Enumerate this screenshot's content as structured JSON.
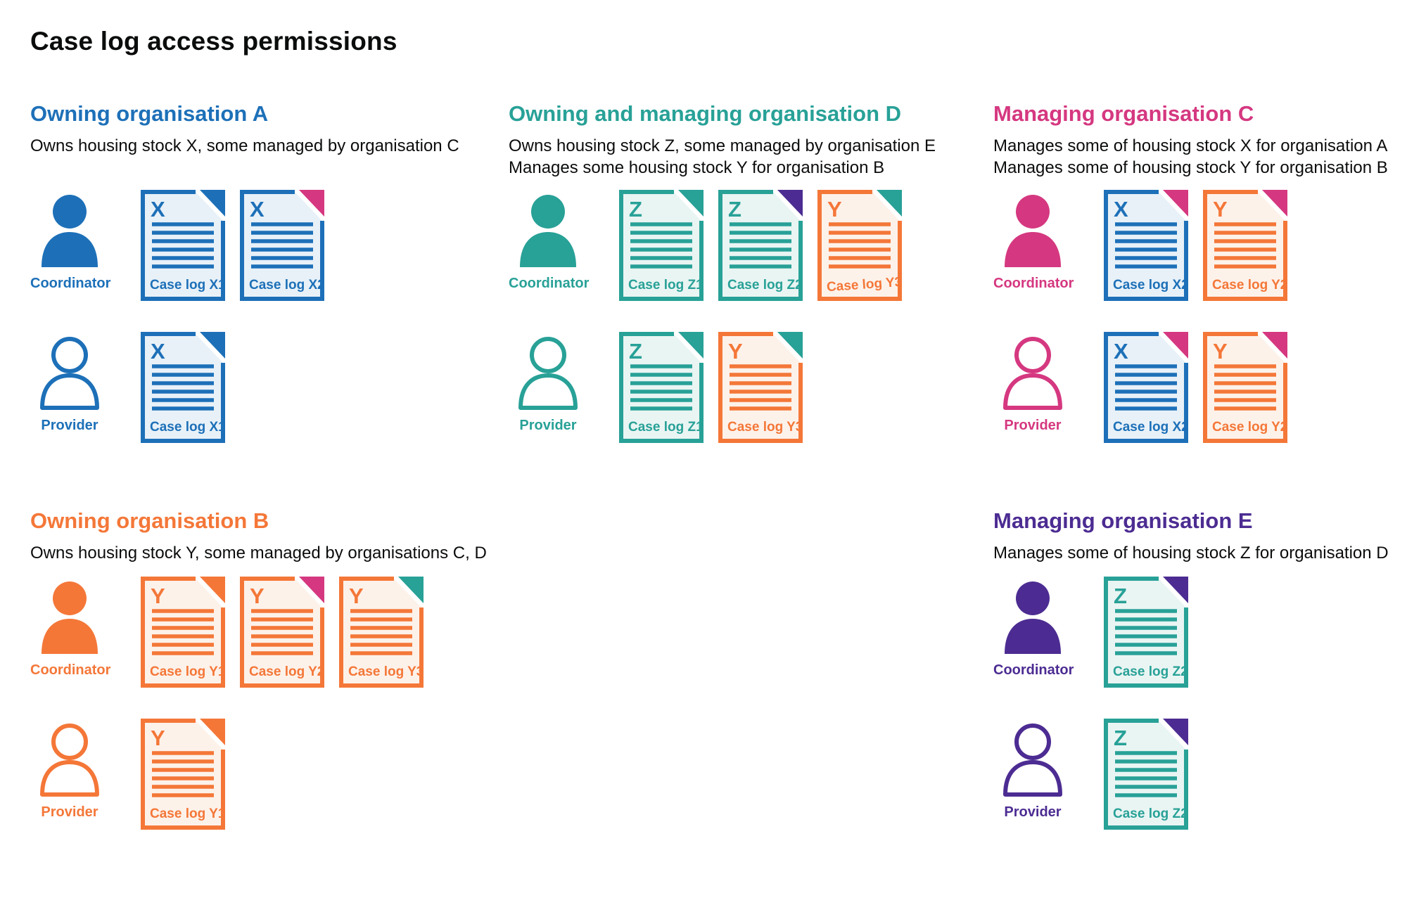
{
  "page_title": "Case log access permissions",
  "colors": {
    "blue": "#1d70b8",
    "teal": "#28a197",
    "orange": "#f47738",
    "pink": "#d53880",
    "purple": "#4c2c92",
    "text": "#0b0c0c",
    "blue_tint": "#e8f1f8",
    "teal_tint": "#e9f5f3",
    "orange_tint": "#fdf2ea"
  },
  "columns": [
    {
      "sections": [
        {
          "id": "owning-organisation-a",
          "title": "Owning organisation A",
          "color": "blue",
          "description": [
            "Owns housing stock X, some managed by organisation C"
          ],
          "rows": [
            {
              "role": "Coordinator",
              "icon": "person-filled-icon",
              "docs": [
                {
                  "letter": "X",
                  "label": "Case log X1",
                  "stock": "blue",
                  "fold": "blue"
                },
                {
                  "letter": "X",
                  "label": "Case log X2",
                  "stock": "blue",
                  "fold": "pink"
                }
              ]
            },
            {
              "role": "Provider",
              "icon": "person-outline-icon",
              "docs": [
                {
                  "letter": "X",
                  "label": "Case log X1",
                  "stock": "blue",
                  "fold": "blue"
                }
              ]
            }
          ]
        },
        {
          "id": "owning-organisation-b",
          "title": "Owning organisation B",
          "color": "orange",
          "description": [
            "Owns housing stock Y, some managed by organisations C, D"
          ],
          "rows": [
            {
              "role": "Coordinator",
              "icon": "person-filled-icon",
              "docs": [
                {
                  "letter": "Y",
                  "label": "Case log Y1",
                  "stock": "orange",
                  "fold": "orange"
                },
                {
                  "letter": "Y",
                  "label": "Case log Y2",
                  "stock": "orange",
                  "fold": "pink"
                },
                {
                  "letter": "Y",
                  "label": "Case log Y3",
                  "stock": "orange",
                  "fold": "teal"
                }
              ]
            },
            {
              "role": "Provider",
              "icon": "person-outline-icon",
              "docs": [
                {
                  "letter": "Y",
                  "label": "Case log Y1",
                  "stock": "orange",
                  "fold": "orange"
                }
              ]
            }
          ]
        }
      ]
    },
    {
      "sections": [
        {
          "id": "owning-and-managing-organisation-d",
          "title": "Owning and managing organisation D",
          "color": "teal",
          "description": [
            "Owns housing stock Z, some managed by organisation E",
            "Manages some housing stock Y for organisation B"
          ],
          "rows": [
            {
              "role": "Coordinator",
              "icon": "person-filled-icon",
              "docs": [
                {
                  "letter": "Z",
                  "label": "Case log Z1",
                  "stock": "teal",
                  "fold": "teal"
                },
                {
                  "letter": "Z",
                  "label": "Case log Z2",
                  "stock": "teal",
                  "fold": "purple"
                },
                {
                  "letter": "Y",
                  "label": "Case log Y3",
                  "stock": "orange",
                  "fold": "teal",
                  "tilt": true
                }
              ]
            },
            {
              "role": "Provider",
              "icon": "person-outline-icon",
              "docs": [
                {
                  "letter": "Z",
                  "label": "Case log Z1",
                  "stock": "teal",
                  "fold": "teal"
                },
                {
                  "letter": "Y",
                  "label": "Case log Y3",
                  "stock": "orange",
                  "fold": "teal"
                }
              ]
            }
          ]
        }
      ]
    },
    {
      "sections": [
        {
          "id": "managing-organisation-c",
          "title": "Managing organisation C",
          "color": "pink",
          "description": [
            "Manages some of housing stock X for organisation A",
            "Manages some of housing stock Y for organisation B"
          ],
          "rows": [
            {
              "role": "Coordinator",
              "icon": "person-filled-icon",
              "docs": [
                {
                  "letter": "X",
                  "label": "Case log X2",
                  "stock": "blue",
                  "fold": "pink"
                },
                {
                  "letter": "Y",
                  "label": "Case log Y2",
                  "stock": "orange",
                  "fold": "pink"
                }
              ]
            },
            {
              "role": "Provider",
              "icon": "person-outline-icon",
              "docs": [
                {
                  "letter": "X",
                  "label": "Case log X2",
                  "stock": "blue",
                  "fold": "pink"
                },
                {
                  "letter": "Y",
                  "label": "Case log Y2",
                  "stock": "orange",
                  "fold": "pink"
                }
              ]
            }
          ]
        },
        {
          "id": "managing-organisation-e",
          "title": "Managing organisation E",
          "color": "purple",
          "description": [
            "Manages some of housing stock Z for organisation D"
          ],
          "rows": [
            {
              "role": "Coordinator",
              "icon": "person-filled-icon",
              "docs": [
                {
                  "letter": "Z",
                  "label": "Case log Z2",
                  "stock": "teal",
                  "fold": "purple"
                }
              ]
            },
            {
              "role": "Provider",
              "icon": "person-outline-icon",
              "docs": [
                {
                  "letter": "Z",
                  "label": "Case log Z2",
                  "stock": "teal",
                  "fold": "purple"
                }
              ]
            }
          ]
        }
      ]
    }
  ]
}
